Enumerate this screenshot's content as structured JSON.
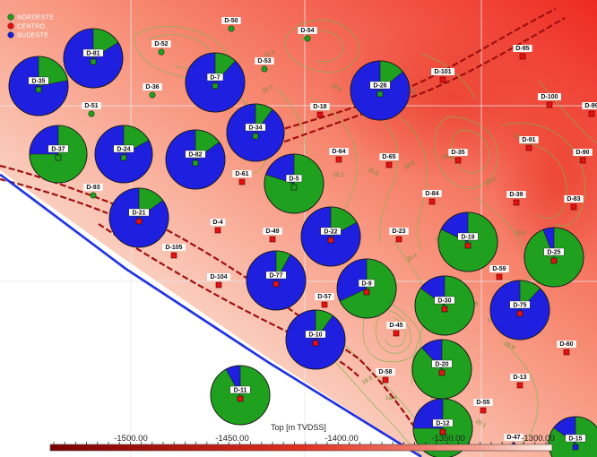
{
  "legend": {
    "items": [
      {
        "label": "NORDESTE",
        "color": "#1fa01f"
      },
      {
        "label": "CENTRO",
        "color": "#e81010"
      },
      {
        "label": "SUDESTE",
        "color": "#1020e0"
      }
    ]
  },
  "colors": {
    "nordeste": "#1fa01f",
    "centro": "#e81010",
    "sudeste": "#1f1fe0",
    "fault": "#a01010",
    "contour": "#7ab84a",
    "boundary": "#1a2de0"
  },
  "scale_bar": {
    "title": "Top [m TVDSS]",
    "ticks": [
      "-1500.00",
      "-1450.00",
      "-1400.00",
      "-1350.00",
      "-1300.00"
    ]
  },
  "contour_labels": [
    "20.1",
    "19.8",
    "19.6",
    "20.1",
    "20.2",
    "19.5",
    "19.8",
    "20.1",
    "20.0",
    "19.9",
    "19.8",
    "20.6",
    "20.1",
    "19.5",
    "19.8",
    "20.0",
    "19.9",
    "19.4",
    "19.8",
    "20.1",
    "19.9",
    "19.8",
    "18.4",
    "20.1",
    "19.8",
    "18.4"
  ],
  "wells": [
    {
      "id": "D-50",
      "zone": "nordeste"
    },
    {
      "id": "D-54",
      "zone": "nordeste"
    },
    {
      "id": "D-52",
      "zone": "nordeste"
    },
    {
      "id": "D-53",
      "zone": "nordeste"
    },
    {
      "id": "D-95",
      "zone": "centro"
    },
    {
      "id": "D-101",
      "zone": "centro"
    },
    {
      "id": "D-36",
      "zone": "nordeste"
    },
    {
      "id": "D-51",
      "zone": "nordeste"
    },
    {
      "id": "D-18",
      "zone": "centro"
    },
    {
      "id": "D-100",
      "zone": "centro"
    },
    {
      "id": "D-99",
      "zone": "centro"
    },
    {
      "id": "D-91",
      "zone": "centro"
    },
    {
      "id": "D-90",
      "zone": "centro"
    },
    {
      "id": "D-64",
      "zone": "centro"
    },
    {
      "id": "D-65",
      "zone": "centro"
    },
    {
      "id": "D-35",
      "zone": "centro"
    },
    {
      "id": "D-93",
      "zone": "nordeste"
    },
    {
      "id": "D-61",
      "zone": "centro"
    },
    {
      "id": "D-84",
      "zone": "centro"
    },
    {
      "id": "D-39",
      "zone": "centro"
    },
    {
      "id": "D-83",
      "zone": "centro"
    },
    {
      "id": "D-4",
      "zone": "centro"
    },
    {
      "id": "D-49",
      "zone": "centro"
    },
    {
      "id": "D-23",
      "zone": "centro"
    },
    {
      "id": "D-105",
      "zone": "centro"
    },
    {
      "id": "D-104",
      "zone": "centro"
    },
    {
      "id": "D-59",
      "zone": "centro"
    },
    {
      "id": "D-57",
      "zone": "centro"
    },
    {
      "id": "D-45",
      "zone": "centro"
    },
    {
      "id": "D-60",
      "zone": "centro"
    },
    {
      "id": "D-58",
      "zone": "centro"
    },
    {
      "id": "D-13",
      "zone": "centro"
    },
    {
      "id": "D-55",
      "zone": "centro"
    },
    {
      "id": "D-47",
      "zone": "sudeste"
    }
  ],
  "pies": [
    {
      "id": "D-81",
      "nordeste": 0.16,
      "centro": 0.0,
      "sudeste": 0.84,
      "well_zone": "nordeste"
    },
    {
      "id": "D-35",
      "nordeste": 0.22,
      "centro": 0.0,
      "sudeste": 0.78,
      "well_zone": "nordeste"
    },
    {
      "id": "D-7",
      "nordeste": 0.12,
      "centro": 0.0,
      "sudeste": 0.88,
      "well_zone": "nordeste"
    },
    {
      "id": "D-26",
      "nordeste": 0.14,
      "centro": 0.0,
      "sudeste": 0.86,
      "well_zone": "nordeste"
    },
    {
      "id": "D-34",
      "nordeste": 0.1,
      "centro": 0.0,
      "sudeste": 0.9,
      "well_zone": "nordeste"
    },
    {
      "id": "D-37",
      "nordeste": 0.75,
      "centro": 0.0,
      "sudeste": 0.25,
      "well_zone": "nordeste"
    },
    {
      "id": "D-24",
      "nordeste": 0.17,
      "centro": 0.0,
      "sudeste": 0.83,
      "well_zone": "nordeste"
    },
    {
      "id": "D-82",
      "nordeste": 0.15,
      "centro": 0.0,
      "sudeste": 0.85,
      "well_zone": "nordeste"
    },
    {
      "id": "D-5",
      "nordeste": 0.8,
      "centro": 0.0,
      "sudeste": 0.2,
      "well_zone": "nordeste"
    },
    {
      "id": "D-21",
      "nordeste": 0.15,
      "centro": 0.0,
      "sudeste": 0.85,
      "well_zone": "centro"
    },
    {
      "id": "D-22",
      "nordeste": 0.17,
      "centro": 0.0,
      "sudeste": 0.83,
      "well_zone": "centro"
    },
    {
      "id": "D-19",
      "nordeste": 0.82,
      "centro": 0.0,
      "sudeste": 0.18,
      "well_zone": "centro"
    },
    {
      "id": "D-25",
      "nordeste": 0.94,
      "centro": 0.0,
      "sudeste": 0.06,
      "well_zone": "centro"
    },
    {
      "id": "D-77",
      "nordeste": 0.08,
      "centro": 0.0,
      "sudeste": 0.92,
      "well_zone": "centro"
    },
    {
      "id": "D-9",
      "nordeste": 0.68,
      "centro": 0.0,
      "sudeste": 0.32,
      "well_zone": "centro"
    },
    {
      "id": "D-30",
      "nordeste": 0.85,
      "centro": 0.0,
      "sudeste": 0.15,
      "well_zone": "centro"
    },
    {
      "id": "D-75",
      "nordeste": 0.12,
      "centro": 0.0,
      "sudeste": 0.88,
      "well_zone": "centro"
    },
    {
      "id": "D-10",
      "nordeste": 0.1,
      "centro": 0.0,
      "sudeste": 0.9,
      "well_zone": "centro"
    },
    {
      "id": "D-20",
      "nordeste": 0.88,
      "centro": 0.0,
      "sudeste": 0.12,
      "well_zone": "centro"
    },
    {
      "id": "D-11",
      "nordeste": 0.92,
      "centro": 0.0,
      "sudeste": 0.08,
      "well_zone": "centro"
    },
    {
      "id": "D-12",
      "nordeste": 0.75,
      "centro": 0.0,
      "sudeste": 0.25,
      "well_zone": "centro"
    },
    {
      "id": "D-15",
      "nordeste": 0.85,
      "centro": 0.0,
      "sudeste": 0.15,
      "well_zone": "sudeste"
    }
  ]
}
